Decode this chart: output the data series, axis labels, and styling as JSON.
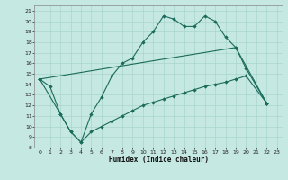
{
  "bg_color": "#c5e8e2",
  "grid_color": "#a8d4cc",
  "line_color": "#1a6b5a",
  "xlabel": "Humidex (Indice chaleur)",
  "xlim": [
    -0.5,
    23.5
  ],
  "ylim": [
    8,
    21.5
  ],
  "xticks": [
    0,
    1,
    2,
    3,
    4,
    5,
    6,
    7,
    8,
    9,
    10,
    11,
    12,
    13,
    14,
    15,
    16,
    17,
    18,
    19,
    20,
    21,
    22,
    23
  ],
  "yticks": [
    8,
    9,
    10,
    11,
    12,
    13,
    14,
    15,
    16,
    17,
    18,
    19,
    20,
    21
  ],
  "line1_x": [
    0,
    1,
    2,
    3,
    4,
    5,
    6,
    7,
    8,
    9,
    10,
    11,
    12,
    13,
    14,
    15,
    16,
    17,
    18,
    19,
    20,
    22
  ],
  "line1_y": [
    14.5,
    13.8,
    11.2,
    9.5,
    8.5,
    11.2,
    12.8,
    14.8,
    16.0,
    16.5,
    18.0,
    19.0,
    20.5,
    20.2,
    19.5,
    19.5,
    20.5,
    20.0,
    18.5,
    17.5,
    15.5,
    12.2
  ],
  "line2_x": [
    0,
    19,
    22
  ],
  "line2_y": [
    14.5,
    17.5,
    12.2
  ],
  "line3_x": [
    0,
    2,
    3,
    4,
    5,
    6,
    7,
    8,
    9,
    10,
    11,
    12,
    13,
    14,
    15,
    16,
    17,
    18,
    19,
    20,
    22
  ],
  "line3_y": [
    14.5,
    11.2,
    9.5,
    8.5,
    9.5,
    10.0,
    10.5,
    11.0,
    11.5,
    12.0,
    12.3,
    12.6,
    12.9,
    13.2,
    13.5,
    13.8,
    14.0,
    14.2,
    14.5,
    14.8,
    12.2
  ]
}
